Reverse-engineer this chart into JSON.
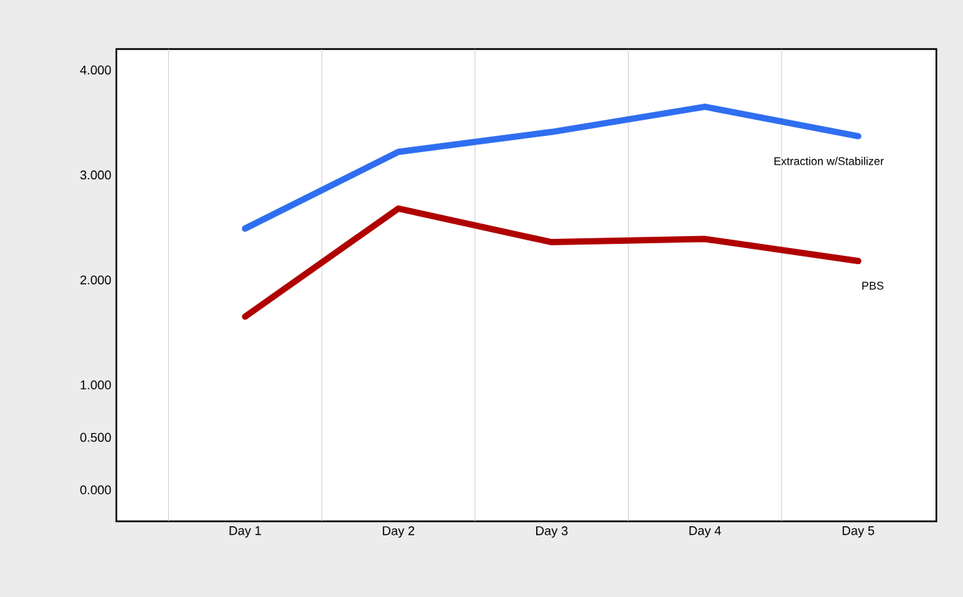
{
  "chart_data": {
    "type": "line",
    "categories": [
      "Day 1",
      "Day 2",
      "Day 3",
      "Day 4",
      "Day 5"
    ],
    "series": [
      {
        "name": "Extraction w/Stabilizer",
        "color": "#2f6ef0",
        "values": [
          2.49,
          3.22,
          3.41,
          3.65,
          3.37
        ]
      },
      {
        "name": "PBS",
        "color": "#b00000",
        "values": [
          1.65,
          2.68,
          2.36,
          2.39,
          2.18
        ]
      }
    ],
    "ylim": [
      -0.3,
      4.2
    ],
    "yticks": [
      {
        "value": 0,
        "label": "0.000"
      },
      {
        "value": 0.5,
        "label": "0.500"
      },
      {
        "value": 1,
        "label": "1.000"
      },
      {
        "value": 2,
        "label": "2.000"
      },
      {
        "value": 3,
        "label": "3.000"
      },
      {
        "value": 4,
        "label": "4.000"
      }
    ],
    "grid": false,
    "legend": false,
    "marker": "none",
    "line_style": "solid"
  }
}
